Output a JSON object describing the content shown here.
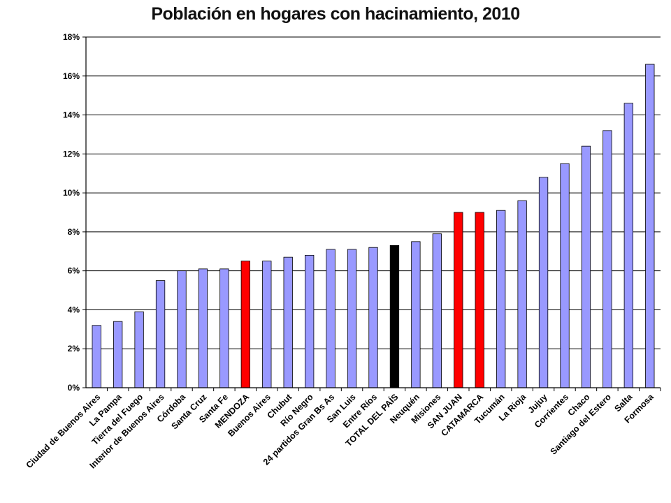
{
  "chart_data": {
    "type": "bar",
    "title": "Población en hogares con hacinamiento, 2010",
    "xlabel": "",
    "ylabel": "",
    "ylim": [
      0,
      18
    ],
    "y_ticks": [
      "0%",
      "2%",
      "4%",
      "6%",
      "8%",
      "10%",
      "12%",
      "14%",
      "16%",
      "18%"
    ],
    "grid": true,
    "legend": "none",
    "categories": [
      "Ciudad de Buenos Aires",
      "La Pampa",
      "Tierra del Fuego",
      "Interior de Buenos Aires",
      "Córdoba",
      "Santa Cruz",
      "Santa Fe",
      "MENDOZA",
      "Buenos Aires",
      "Chubut",
      "Río Negro",
      "24 partidos Gran Bs As",
      "San Luis",
      "Entre Ríos",
      "TOTAL DEL PAÍS",
      "Neuquén",
      "Misiones",
      "SAN JUAN",
      "CATAMARCA",
      "Tucumán",
      "La Rioja",
      "Jujuy",
      "Corrientes",
      "Chaco",
      "Santiago del Estero",
      "Salta",
      "Formosa"
    ],
    "values": [
      3.2,
      3.4,
      3.9,
      5.5,
      6.0,
      6.1,
      6.1,
      6.5,
      6.5,
      6.7,
      6.8,
      7.1,
      7.1,
      7.2,
      7.3,
      7.5,
      7.9,
      9.0,
      9.0,
      9.1,
      9.6,
      10.8,
      11.5,
      12.4,
      13.2,
      14.6,
      16.6
    ],
    "bar_colors": [
      "#9999ff",
      "#9999ff",
      "#9999ff",
      "#9999ff",
      "#9999ff",
      "#9999ff",
      "#9999ff",
      "#ff0000",
      "#9999ff",
      "#9999ff",
      "#9999ff",
      "#9999ff",
      "#9999ff",
      "#9999ff",
      "#000000",
      "#9999ff",
      "#9999ff",
      "#ff0000",
      "#ff0000",
      "#9999ff",
      "#9999ff",
      "#9999ff",
      "#9999ff",
      "#9999ff",
      "#9999ff",
      "#9999ff",
      "#9999ff"
    ]
  },
  "colors": {
    "default_bar": "#9999ff",
    "highlight_bar": "#ff0000",
    "total_bar": "#000000",
    "gridline": "#000000"
  }
}
